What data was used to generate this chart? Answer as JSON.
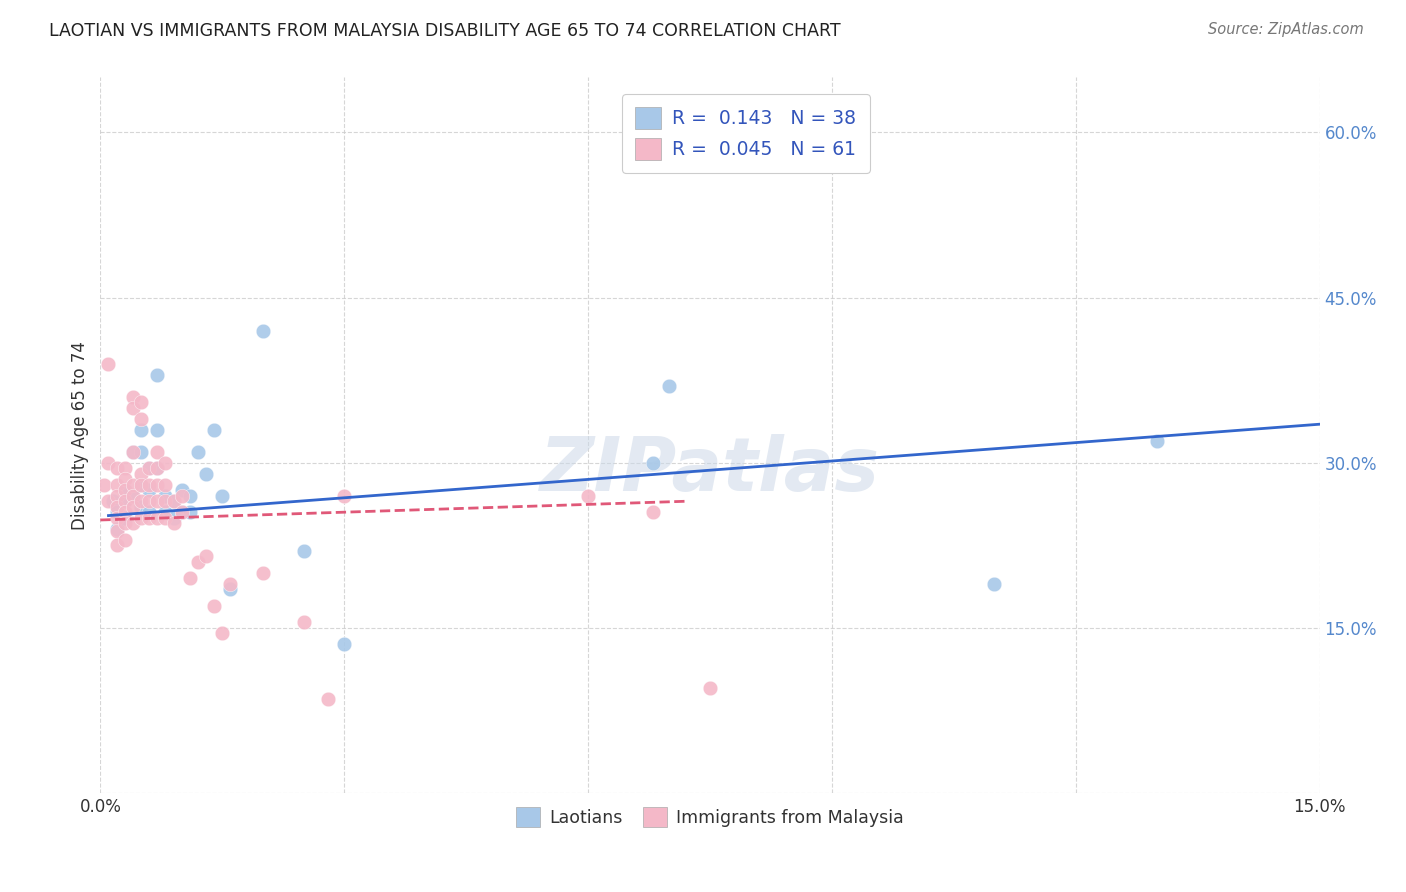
{
  "title": "LAOTIAN VS IMMIGRANTS FROM MALAYSIA DISABILITY AGE 65 TO 74 CORRELATION CHART",
  "source": "Source: ZipAtlas.com",
  "ylabel": "Disability Age 65 to 74",
  "xmin": 0.0,
  "xmax": 0.15,
  "ymin": 0.0,
  "ymax": 0.65,
  "legend_r1_val": "0.143",
  "legend_r2_val": "0.045",
  "legend_n1": 38,
  "legend_n2": 61,
  "blue_color": "#a8c8e8",
  "pink_color": "#f4b8c8",
  "line_blue": "#3366cc",
  "line_pink": "#e05878",
  "watermark": "ZIPatlas",
  "blue_line_x0": 0.001,
  "blue_line_x1": 0.15,
  "blue_line_y0": 0.252,
  "blue_line_y1": 0.335,
  "pink_line_x0": 0.0,
  "pink_line_x1": 0.072,
  "pink_line_y0": 0.248,
  "pink_line_y1": 0.265,
  "blue_points_x": [
    0.0015,
    0.002,
    0.002,
    0.003,
    0.003,
    0.003,
    0.004,
    0.004,
    0.005,
    0.005,
    0.005,
    0.005,
    0.006,
    0.006,
    0.006,
    0.007,
    0.007,
    0.007,
    0.008,
    0.008,
    0.009,
    0.009,
    0.01,
    0.01,
    0.011,
    0.011,
    0.012,
    0.013,
    0.014,
    0.015,
    0.016,
    0.02,
    0.025,
    0.03,
    0.068,
    0.07,
    0.11,
    0.13
  ],
  "blue_points_y": [
    0.265,
    0.255,
    0.24,
    0.275,
    0.265,
    0.25,
    0.31,
    0.27,
    0.33,
    0.31,
    0.28,
    0.26,
    0.295,
    0.275,
    0.255,
    0.38,
    0.33,
    0.295,
    0.27,
    0.255,
    0.265,
    0.25,
    0.275,
    0.255,
    0.27,
    0.255,
    0.31,
    0.29,
    0.33,
    0.27,
    0.185,
    0.42,
    0.22,
    0.135,
    0.3,
    0.37,
    0.19,
    0.32
  ],
  "pink_points_x": [
    0.0005,
    0.001,
    0.001,
    0.001,
    0.002,
    0.002,
    0.002,
    0.002,
    0.002,
    0.002,
    0.002,
    0.003,
    0.003,
    0.003,
    0.003,
    0.003,
    0.003,
    0.003,
    0.004,
    0.004,
    0.004,
    0.004,
    0.004,
    0.004,
    0.004,
    0.005,
    0.005,
    0.005,
    0.005,
    0.005,
    0.005,
    0.006,
    0.006,
    0.006,
    0.006,
    0.007,
    0.007,
    0.007,
    0.007,
    0.007,
    0.008,
    0.008,
    0.008,
    0.008,
    0.009,
    0.009,
    0.01,
    0.01,
    0.011,
    0.012,
    0.013,
    0.014,
    0.015,
    0.016,
    0.02,
    0.025,
    0.028,
    0.03,
    0.06,
    0.068,
    0.075
  ],
  "pink_points_y": [
    0.28,
    0.39,
    0.3,
    0.265,
    0.295,
    0.28,
    0.27,
    0.26,
    0.25,
    0.238,
    0.225,
    0.295,
    0.285,
    0.275,
    0.265,
    0.255,
    0.245,
    0.23,
    0.36,
    0.35,
    0.31,
    0.28,
    0.27,
    0.26,
    0.245,
    0.355,
    0.34,
    0.29,
    0.28,
    0.265,
    0.25,
    0.295,
    0.28,
    0.265,
    0.25,
    0.31,
    0.295,
    0.28,
    0.265,
    0.25,
    0.3,
    0.28,
    0.265,
    0.25,
    0.265,
    0.245,
    0.27,
    0.255,
    0.195,
    0.21,
    0.215,
    0.17,
    0.145,
    0.19,
    0.2,
    0.155,
    0.085,
    0.27,
    0.27,
    0.255,
    0.095
  ]
}
